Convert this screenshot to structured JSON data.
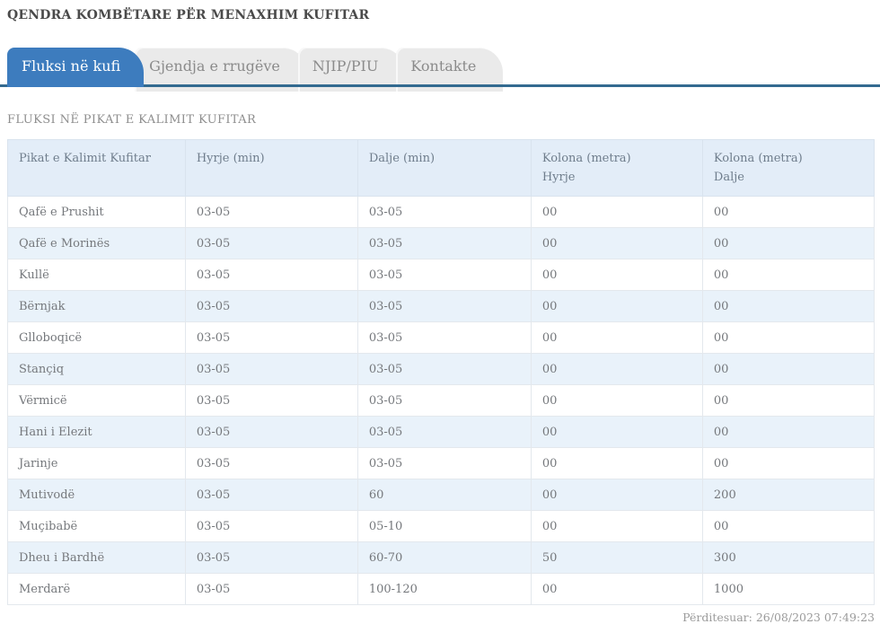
{
  "page": {
    "title": "QENDRA KOMBËTARE PËR MENAXHIM KUFITAR",
    "section_title": "FLUKSI NË PIKAT E KALIMIT KUFITAR",
    "updated_text": "Përditesuar: 26/08/2023 07:49:23"
  },
  "tabs": [
    {
      "id": "fluksi-ne-kufi",
      "label": "Fluksi në kufi",
      "active": true
    },
    {
      "id": "gjendja-e-rrugeve",
      "label": "Gjendja e rrugëve",
      "active": false
    },
    {
      "id": "njip-piu",
      "label": "NJIP/PIU",
      "active": false
    },
    {
      "id": "kontakte",
      "label": "Kontakte",
      "active": false
    }
  ],
  "table": {
    "headers": [
      {
        "lines": [
          "Pikat e Kalimit Kufitar"
        ]
      },
      {
        "lines": [
          "Hyrje (min)"
        ]
      },
      {
        "lines": [
          "Dalje (min)"
        ]
      },
      {
        "lines": [
          "Kolona (metra)",
          "Hyrje"
        ]
      },
      {
        "lines": [
          "Kolona (metra)",
          "Dalje"
        ]
      }
    ],
    "col_widths_pct": [
      20.5,
      19.9,
      20.0,
      19.8,
      19.8
    ],
    "rows": [
      [
        "Qafë e Prushit",
        "03-05",
        "03-05",
        "00",
        "00"
      ],
      [
        "Qafë e Morinës",
        "03-05",
        "03-05",
        "00",
        "00"
      ],
      [
        "Kullë",
        "03-05",
        "03-05",
        "00",
        "00"
      ],
      [
        "Bërnjak",
        "03-05",
        "03-05",
        "00",
        "00"
      ],
      [
        "Glloboqicë",
        "03-05",
        "03-05",
        "00",
        "00"
      ],
      [
        "Stançiq",
        "03-05",
        "03-05",
        "00",
        "00"
      ],
      [
        "Vërmicë",
        "03-05",
        "03-05",
        "00",
        "00"
      ],
      [
        "Hani i Elezit",
        "03-05",
        "03-05",
        "00",
        "00"
      ],
      [
        "Jarinje",
        "03-05",
        "03-05",
        "00",
        "00"
      ],
      [
        "Mutivodë",
        "03-05",
        "60",
        "00",
        "200"
      ],
      [
        "Muçibabë",
        "03-05",
        "05-10",
        "00",
        "00"
      ],
      [
        "Dheu i Bardhë",
        "03-05",
        "60-70",
        "50",
        "300"
      ],
      [
        "Merdarë",
        "03-05",
        "100-120",
        "00",
        "1000"
      ]
    ]
  },
  "colors": {
    "active_tab": "#3d7cbe",
    "inactive_tab": "#eaeaea",
    "tab_underline": "#336a90",
    "table_header_bg": "#e3edf8",
    "row_stripe_bg": "#e9f2fa",
    "text_gray": "#75787c"
  }
}
